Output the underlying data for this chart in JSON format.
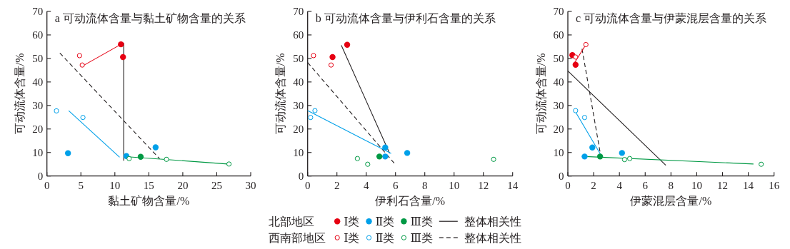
{
  "chart_data": [
    {
      "type": "scatter",
      "title": "a 可动流体含量与黏土矿物含量的关系",
      "xlabel": "黏土矿物含量/%",
      "ylabel": "可动流体含量/%",
      "xlim": [
        0,
        30
      ],
      "xticks": [
        0,
        5,
        10,
        15,
        20,
        25,
        30
      ],
      "ylim": [
        0,
        70
      ],
      "yticks": [
        0,
        10,
        20,
        30,
        40,
        50,
        60,
        70
      ],
      "marker": "circle",
      "series": [
        {
          "color": "#e60012",
          "x": [
            10.9,
            11.2
          ],
          "values": [
            56,
            50.6
          ]
        },
        {
          "color": "#00a0e9",
          "x": [
            3.1,
            11.7,
            16.0
          ],
          "values": [
            9.7,
            8.5,
            12.2
          ]
        },
        {
          "color": "#009944",
          "x": [
            13.8
          ],
          "values": [
            8.2
          ]
        },
        {
          "type": "line",
          "marker": "none",
          "line_style": "solid",
          "color": "#231f20",
          "x": [
            11.3,
            11.3
          ],
          "values": [
            56.6,
            6.5
          ]
        },
        {
          "color": "#e60012",
          "marker": "circle-open",
          "x": [
            4.8,
            5.2
          ],
          "values": [
            51.2,
            47.2
          ]
        },
        {
          "color": "#00a0e9",
          "marker": "circle-open",
          "x": [
            1.4,
            5.3
          ],
          "values": [
            27.7,
            24.9
          ]
        },
        {
          "color": "#009944",
          "marker": "circle-open",
          "x": [
            12.1,
            17.6,
            26.8
          ],
          "values": [
            7.4,
            7.1,
            5.1
          ]
        },
        {
          "type": "line",
          "marker": "none",
          "line_style": "dashed",
          "color": "#231f20",
          "x": [
            1.9,
            16.6
          ],
          "values": [
            52.3,
            7.3
          ]
        },
        {
          "type": "line",
          "marker": "none",
          "line_style": "solid",
          "color": "#e60012",
          "x": [
            5.5,
            10.9
          ],
          "values": [
            47.2,
            56
          ]
        },
        {
          "type": "line",
          "marker": "none",
          "line_style": "solid",
          "color": "#00a0e9",
          "x": [
            3.2,
            10.7
          ],
          "values": [
            27.8,
            8.0
          ]
        },
        {
          "type": "line",
          "marker": "none",
          "line_style": "solid",
          "color": "#009944",
          "x": [
            11.9,
            26.6
          ],
          "values": [
            8.2,
            5.1
          ]
        }
      ]
    },
    {
      "type": "scatter",
      "title": "b 可动流体含量与伊利石含量的关系",
      "xlabel": "伊利石含量/%",
      "ylabel": "可动流体含量/%",
      "xlim": [
        0,
        14
      ],
      "xticks": [
        0,
        2,
        4,
        6,
        8,
        10,
        12,
        14
      ],
      "ylim": [
        0,
        70
      ],
      "yticks": [
        0,
        10,
        20,
        30,
        40,
        50,
        60,
        70
      ],
      "marker": "circle",
      "legend": "bottom",
      "annotations": [
        "北部地区",
        "西南部地区"
      ],
      "series": [
        {
          "name": "Ⅰ类",
          "color": "#e60012",
          "x": [
            2.7,
            1.7
          ],
          "values": [
            55.8,
            50.6
          ]
        },
        {
          "name": "Ⅱ类",
          "color": "#00a0e9",
          "x": [
            5.3,
            5.3,
            6.8
          ],
          "values": [
            12.1,
            8.3,
            9.8
          ]
        },
        {
          "name": "Ⅲ类",
          "color": "#009944",
          "x": [
            4.9
          ],
          "values": [
            8.3
          ]
        },
        {
          "name": "整体相关性",
          "type": "line",
          "marker": "none",
          "line_style": "solid",
          "color": "#231f20",
          "x": [
            2.3,
            5.6
          ],
          "values": [
            55.6,
            9.6
          ]
        },
        {
          "name": "Ⅰ类",
          "color": "#e60012",
          "marker": "circle-open",
          "x": [
            0.4,
            1.6
          ],
          "values": [
            51.2,
            47.2
          ]
        },
        {
          "name": "Ⅱ类",
          "color": "#00a0e9",
          "marker": "circle-open",
          "x": [
            0.5,
            0.2
          ],
          "values": [
            27.8,
            24.9
          ]
        },
        {
          "name": "Ⅲ类",
          "color": "#009944",
          "marker": "circle-open",
          "x": [
            3.4,
            4.1,
            12.7
          ],
          "values": [
            7.4,
            5.0,
            7.1
          ]
        },
        {
          "name": "整体相关性",
          "type": "line",
          "marker": "none",
          "line_style": "dashed",
          "color": "#231f20",
          "x": [
            0,
            6.0
          ],
          "values": [
            48.3,
            4.8
          ]
        },
        {
          "type": "line",
          "marker": "none",
          "line_style": "solid",
          "color": "#00a0e9",
          "x": [
            0,
            5.7
          ],
          "values": [
            27.8,
            9.6
          ]
        }
      ]
    },
    {
      "type": "scatter",
      "title": "c 可动流体含量与伊蒙混层含量的关系",
      "xlabel": "伊蒙混层含量/%",
      "ylabel": "可动流体含量/%",
      "xlim": [
        0,
        16
      ],
      "xticks": [
        0,
        2,
        4,
        6,
        8,
        10,
        12,
        14,
        16
      ],
      "ylim": [
        0,
        70
      ],
      "yticks": [
        0,
        10,
        20,
        30,
        40,
        50,
        60,
        70
      ],
      "marker": "circle",
      "series": [
        {
          "color": "#e60012",
          "x": [
            0.35,
            0.6
          ],
          "values": [
            51.4,
            47.3
          ]
        },
        {
          "color": "#00a0e9",
          "x": [
            1.3,
            1.9,
            4.2
          ],
          "values": [
            8.3,
            12.1,
            9.8
          ]
        },
        {
          "color": "#009944",
          "x": [
            2.5
          ],
          "values": [
            8.3
          ]
        },
        {
          "type": "line",
          "marker": "none",
          "line_style": "solid",
          "color": "#231f20",
          "x": [
            0,
            7.6
          ],
          "values": [
            44.7,
            4.6
          ]
        },
        {
          "color": "#e60012",
          "marker": "circle-open",
          "x": [
            0.6,
            1.4
          ],
          "values": [
            50.6,
            55.9
          ]
        },
        {
          "color": "#00a0e9",
          "marker": "circle-open",
          "x": [
            0.6,
            1.3
          ],
          "values": [
            27.8,
            24.9
          ]
        },
        {
          "color": "#009944",
          "marker": "circle-open",
          "x": [
            4.4,
            4.8,
            15.0
          ],
          "values": [
            7.0,
            7.4,
            5.0
          ]
        },
        {
          "type": "line",
          "marker": "none",
          "line_style": "dashed",
          "color": "#231f20",
          "x": [
            1.1,
            2.55
          ],
          "values": [
            54.1,
            8.6
          ]
        },
        {
          "type": "line",
          "marker": "none",
          "line_style": "solid",
          "color": "#e60012",
          "x": [
            0.5,
            1.4
          ],
          "values": [
            48.0,
            55.9
          ]
        },
        {
          "type": "line",
          "marker": "none",
          "line_style": "solid",
          "color": "#00a0e9",
          "x": [
            0.5,
            2.55
          ],
          "values": [
            28.1,
            9.1
          ]
        },
        {
          "type": "line",
          "marker": "none",
          "line_style": "solid",
          "color": "#009944",
          "x": [
            1.35,
            14.4
          ],
          "values": [
            8.3,
            5.1
          ]
        }
      ]
    }
  ]
}
